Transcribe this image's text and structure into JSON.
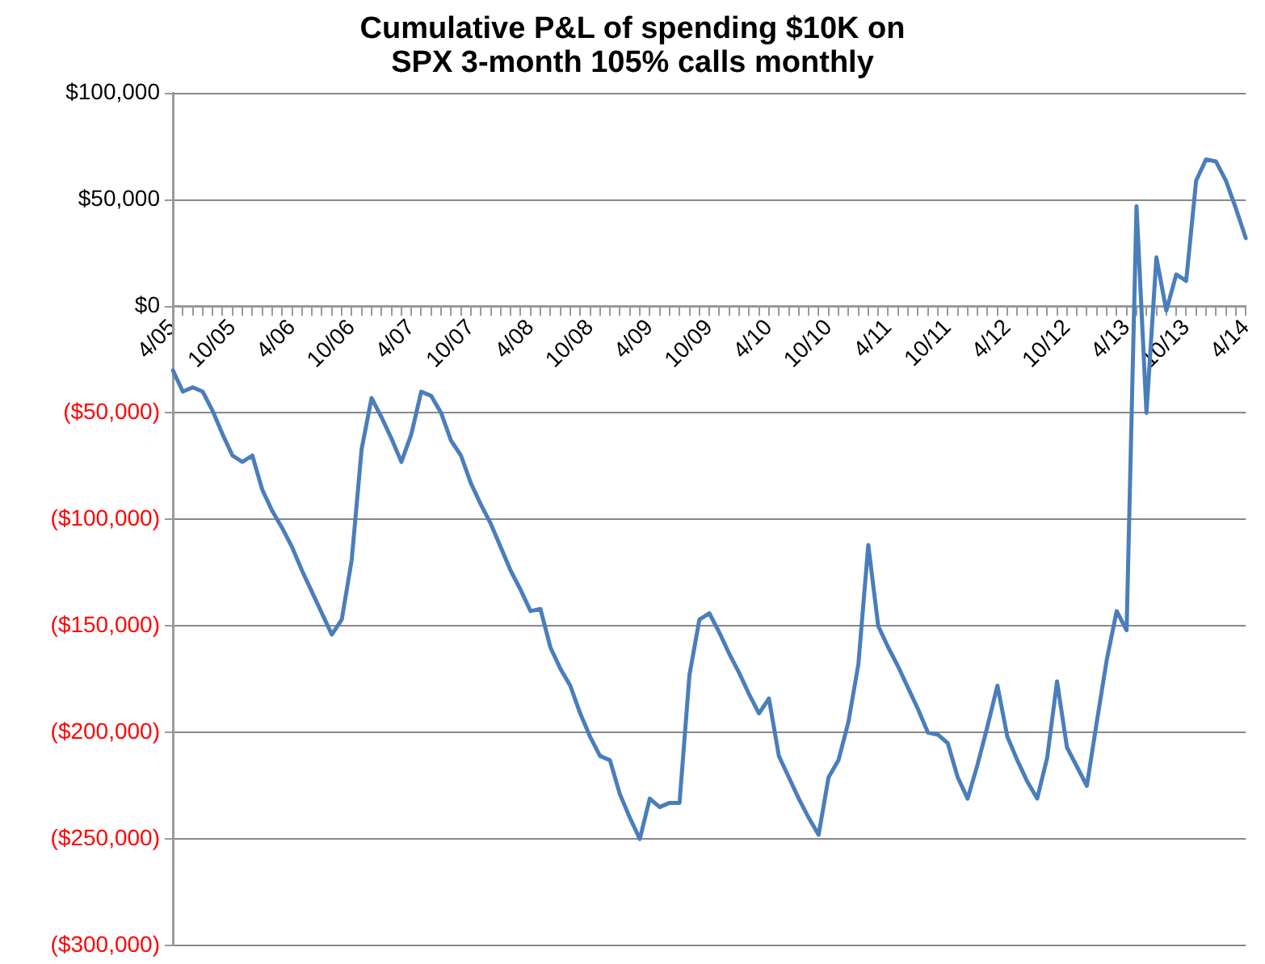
{
  "chart_data": {
    "type": "line",
    "title": "Cumulative P&L of spending $10K on\nSPX 3-month 105% calls monthly",
    "categories": [
      "4/05",
      null,
      null,
      null,
      null,
      null,
      "10/05",
      null,
      null,
      null,
      null,
      null,
      "4/06",
      null,
      null,
      null,
      null,
      null,
      "10/06",
      null,
      null,
      null,
      null,
      null,
      "4/07",
      null,
      null,
      null,
      null,
      null,
      "10/07",
      null,
      null,
      null,
      null,
      null,
      "4/08",
      null,
      null,
      null,
      null,
      null,
      "10/08",
      null,
      null,
      null,
      null,
      null,
      "4/09",
      null,
      null,
      null,
      null,
      null,
      "10/09",
      null,
      null,
      null,
      null,
      null,
      "4/10",
      null,
      null,
      null,
      null,
      null,
      "10/10",
      null,
      null,
      null,
      null,
      null,
      "4/11",
      null,
      null,
      null,
      null,
      null,
      "10/11",
      null,
      null,
      null,
      null,
      null,
      "4/12",
      null,
      null,
      null,
      null,
      null,
      "10/12",
      null,
      null,
      null,
      null,
      null,
      "4/13",
      null,
      null,
      null,
      null,
      null,
      "10/13",
      null,
      null,
      null,
      null,
      null,
      "4/14"
    ],
    "series": [
      {
        "color": "#4a7ebb",
        "values": [
          -30000,
          -40000,
          -38000,
          -40000,
          -49000,
          -60000,
          -70000,
          -73000,
          -70000,
          -86000,
          -96000,
          -104000,
          -113000,
          -124000,
          -134000,
          -144000,
          -154000,
          -147000,
          -119000,
          -67000,
          -43000,
          -52000,
          -62000,
          -73000,
          -60000,
          -40000,
          -42000,
          -50000,
          -63000,
          -70000,
          -83000,
          -93000,
          -102000,
          -113000,
          -124000,
          -133000,
          -143000,
          -142000,
          -160000,
          -170000,
          -178000,
          -191000,
          -202000,
          -211000,
          -213000,
          -229000,
          -240000,
          -250000,
          -231000,
          -235000,
          -233000,
          -233000,
          -173000,
          -147000,
          -144000,
          -153000,
          -163000,
          -172000,
          -182000,
          -191000,
          -184000,
          -211000,
          -221000,
          -231000,
          -240000,
          -248000,
          -221000,
          -213000,
          -195000,
          -168000,
          -112000,
          -150000,
          -160000,
          -169000,
          -179000,
          -189000,
          -200000,
          -201000,
          -205000,
          -221000,
          -231000,
          -215000,
          -197000,
          -178000,
          -202000,
          -213000,
          -223000,
          -231000,
          -212000,
          -176000,
          -207000,
          -216000,
          -225000,
          -195000,
          -166000,
          -143000,
          -152000,
          47000,
          -50000,
          23000,
          -2000,
          15000,
          12000,
          59000,
          69000,
          68000,
          59000,
          46000,
          32000
        ]
      }
    ],
    "ylim": [
      -300000,
      100000
    ],
    "yticks": [
      {
        "value": -300000,
        "label": "($300,000)"
      },
      {
        "value": -250000,
        "label": "($250,000)"
      },
      {
        "value": -200000,
        "label": "($200,000)"
      },
      {
        "value": -150000,
        "label": "($150,000)"
      },
      {
        "value": -100000,
        "label": "($100,000)"
      },
      {
        "value": -50000,
        "label": "($50,000)"
      },
      {
        "value": 0,
        "label": "$0"
      },
      {
        "value": 50000,
        "label": "$50,000"
      },
      {
        "value": 100000,
        "label": "$100,000"
      }
    ],
    "grid": "y",
    "legend": false,
    "marker": "none",
    "line_style": "solid"
  }
}
